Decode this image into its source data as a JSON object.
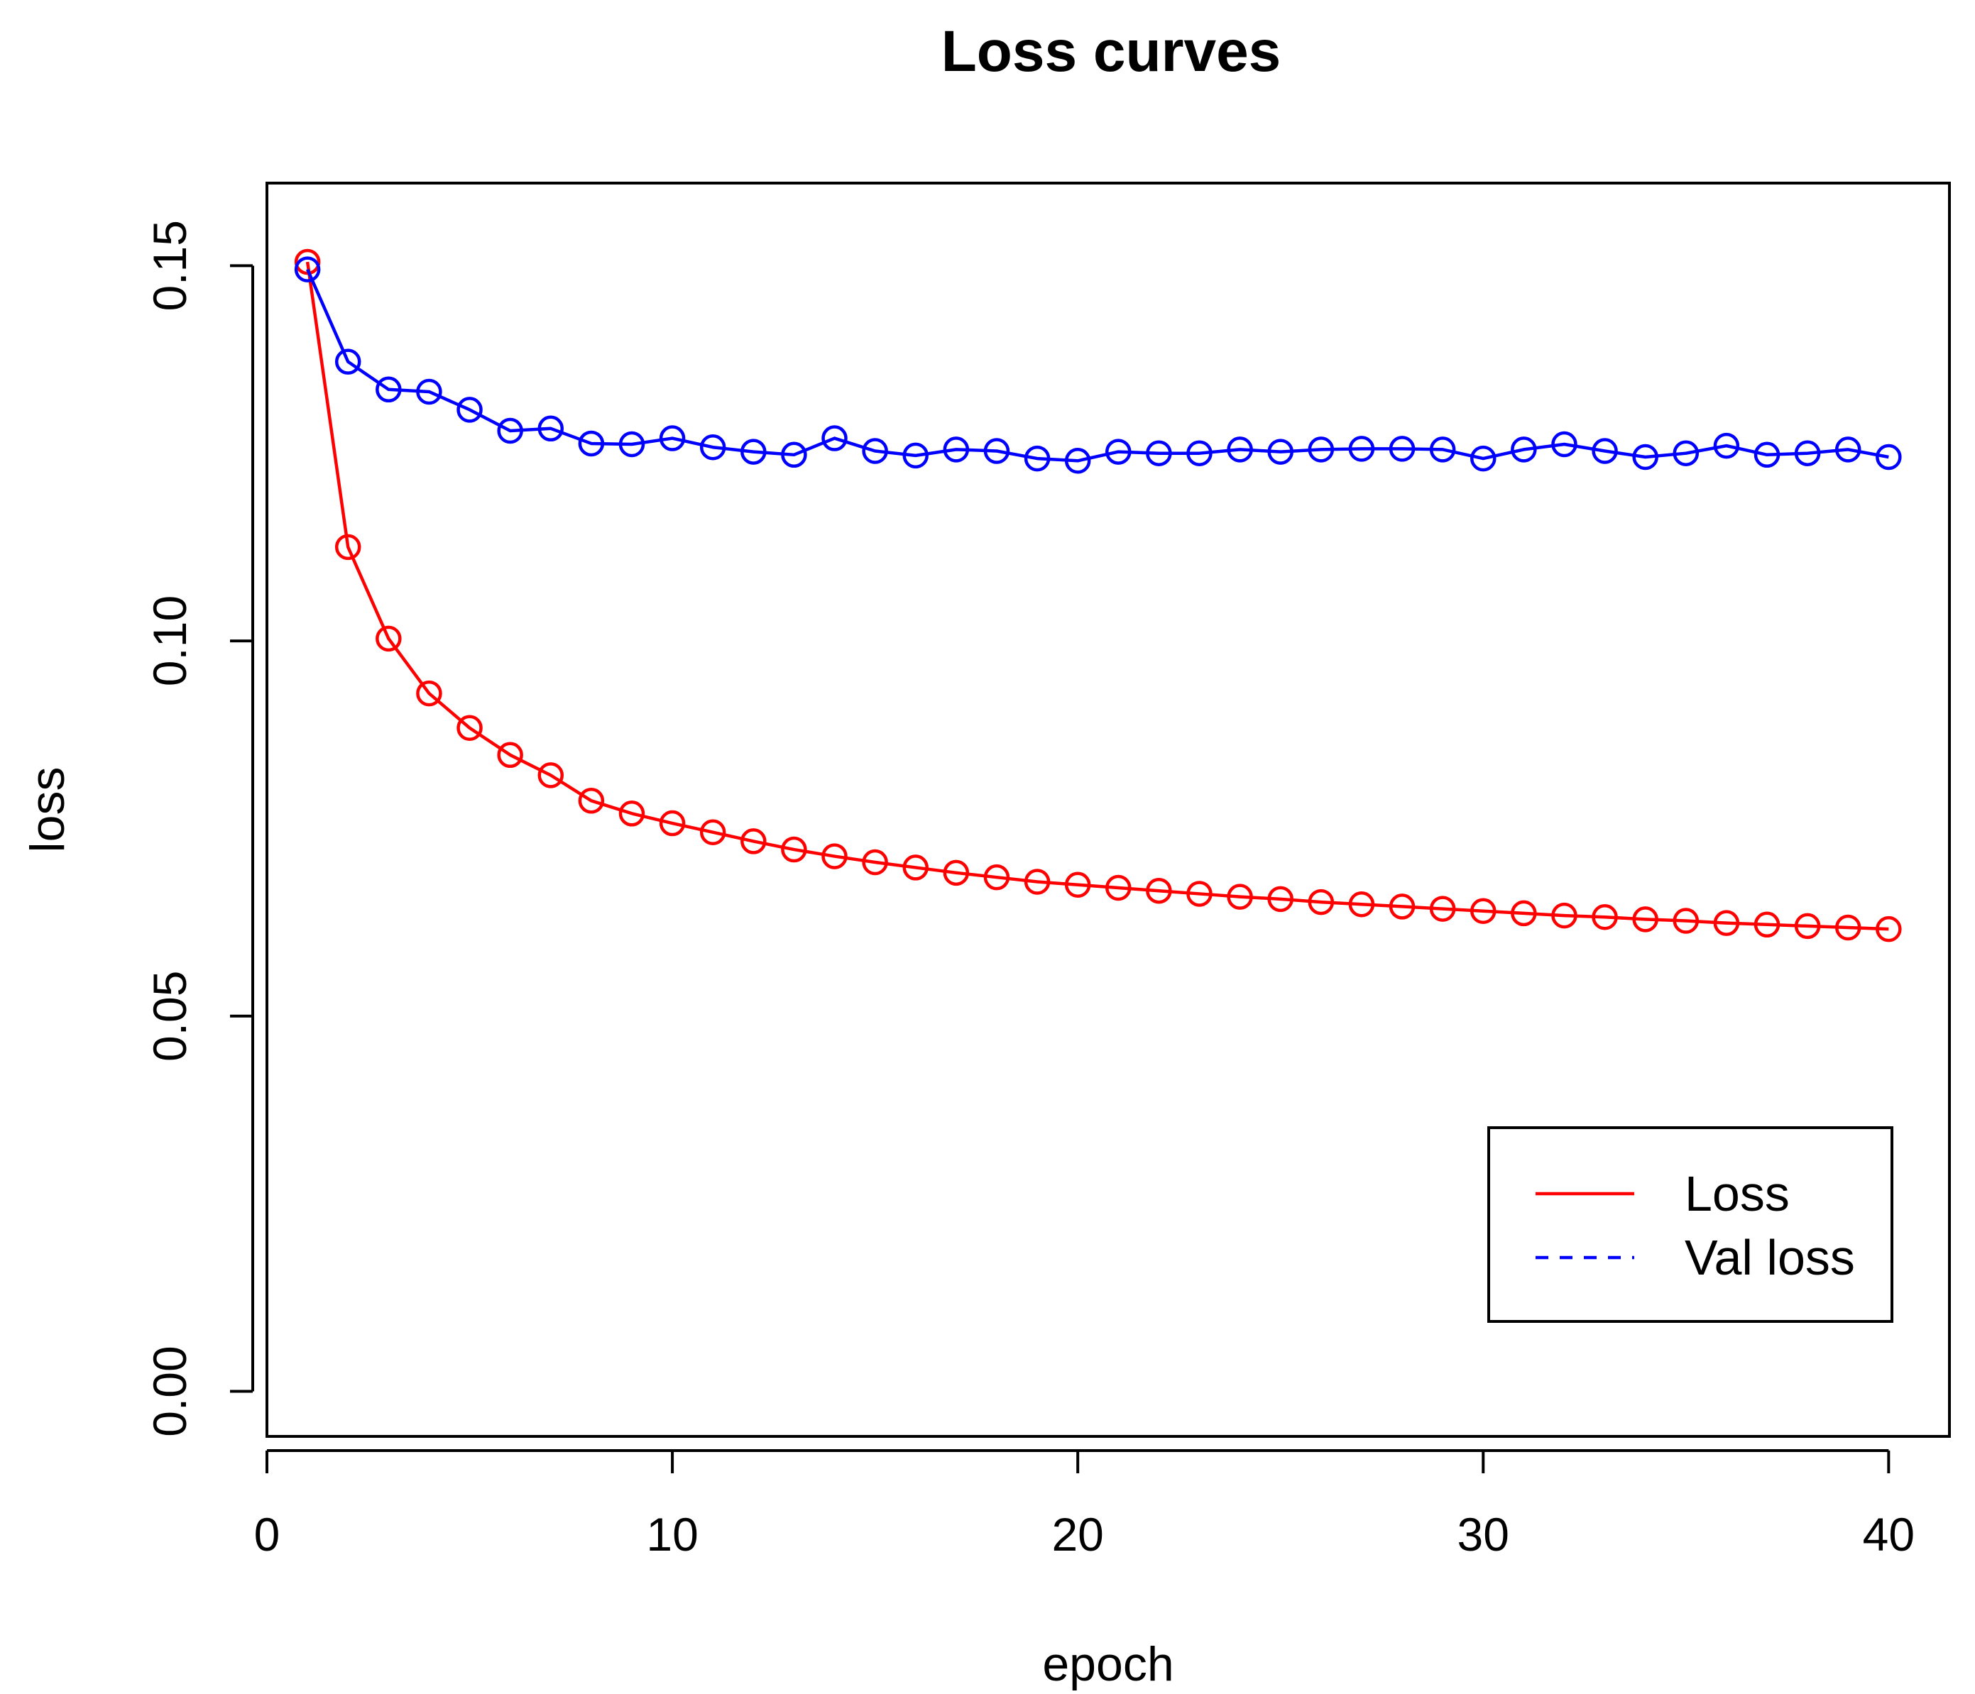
{
  "chart_data": {
    "type": "line",
    "title": "Loss curves",
    "xlabel": "epoch",
    "ylabel": "loss",
    "xlim": [
      0,
      41.5
    ],
    "ylim": [
      -0.006,
      0.161
    ],
    "x_ticks": [
      0,
      10,
      20,
      30,
      40
    ],
    "x_tick_labels": [
      "0",
      "10",
      "20",
      "30",
      "40"
    ],
    "y_ticks": [
      0.0,
      0.05,
      0.1,
      0.15
    ],
    "y_tick_labels": [
      "0.00",
      "0.05",
      "0.10",
      "0.15"
    ],
    "grid": false,
    "legend_position": "bottom-right",
    "x": [
      1,
      2,
      3,
      4,
      5,
      6,
      7,
      8,
      9,
      10,
      11,
      12,
      13,
      14,
      15,
      16,
      17,
      18,
      19,
      20,
      21,
      22,
      23,
      24,
      25,
      26,
      27,
      28,
      29,
      30,
      31,
      32,
      33,
      34,
      35,
      36,
      37,
      38,
      39,
      40
    ],
    "series": [
      {
        "name": "Loss",
        "color": "#ff0000",
        "line_style": "solid",
        "marker": "open-circle",
        "values": [
          0.1505,
          0.1125,
          0.1003,
          0.093,
          0.0884,
          0.0848,
          0.0821,
          0.0787,
          0.077,
          0.0757,
          0.0745,
          0.0733,
          0.0722,
          0.0713,
          0.0705,
          0.0698,
          0.0691,
          0.0685,
          0.0679,
          0.0675,
          0.0671,
          0.0667,
          0.0663,
          0.0659,
          0.0656,
          0.0652,
          0.0649,
          0.0646,
          0.0643,
          0.064,
          0.0637,
          0.0634,
          0.0632,
          0.0629,
          0.0627,
          0.0624,
          0.0622,
          0.062,
          0.0618,
          0.0616
        ]
      },
      {
        "name": "Val loss",
        "color": "#0000ff",
        "line_style": "solid",
        "legend_line_style": "dashed",
        "marker": "open-circle",
        "values": [
          0.1495,
          0.1372,
          0.1335,
          0.1332,
          0.1308,
          0.128,
          0.1283,
          0.1263,
          0.1262,
          0.127,
          0.1258,
          0.1252,
          0.1248,
          0.127,
          0.1253,
          0.1247,
          0.1255,
          0.1253,
          0.1243,
          0.124,
          0.1252,
          0.125,
          0.125,
          0.1255,
          0.1252,
          0.1255,
          0.1256,
          0.1256,
          0.1255,
          0.1243,
          0.1255,
          0.1262,
          0.1253,
          0.1245,
          0.125,
          0.126,
          0.1248,
          0.125,
          0.1255,
          0.1245
        ]
      }
    ]
  }
}
